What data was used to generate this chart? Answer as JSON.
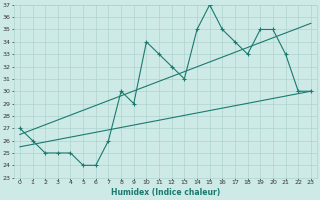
{
  "title": "",
  "xlabel": "Humidex (Indice chaleur)",
  "bg_color": "#ceeae7",
  "grid_color": "#aed4d0",
  "line_color": "#1a7a6e",
  "xlim": [
    -0.5,
    23.5
  ],
  "ylim": [
    23,
    37
  ],
  "xticks": [
    0,
    1,
    2,
    3,
    4,
    5,
    6,
    7,
    8,
    9,
    10,
    11,
    12,
    13,
    14,
    15,
    16,
    17,
    18,
    19,
    20,
    21,
    22,
    23
  ],
  "yticks": [
    23,
    24,
    25,
    26,
    27,
    28,
    29,
    30,
    31,
    32,
    33,
    34,
    35,
    36,
    37
  ],
  "series1_x": [
    0,
    1,
    2,
    3,
    4,
    5,
    6,
    7,
    8,
    9,
    10,
    11,
    12,
    13,
    14,
    15,
    16,
    17,
    18,
    19,
    20,
    21,
    22,
    23
  ],
  "series1_y": [
    27,
    26,
    25,
    25,
    25,
    24,
    24,
    26,
    30,
    29,
    34,
    33,
    32,
    31,
    35,
    37,
    35,
    34,
    33,
    35,
    35,
    33,
    30,
    30
  ],
  "series2_x": [
    0,
    23
  ],
  "series2_y": [
    25.5,
    30
  ],
  "series3_x": [
    0,
    23
  ],
  "series3_y": [
    26.5,
    35.5
  ]
}
